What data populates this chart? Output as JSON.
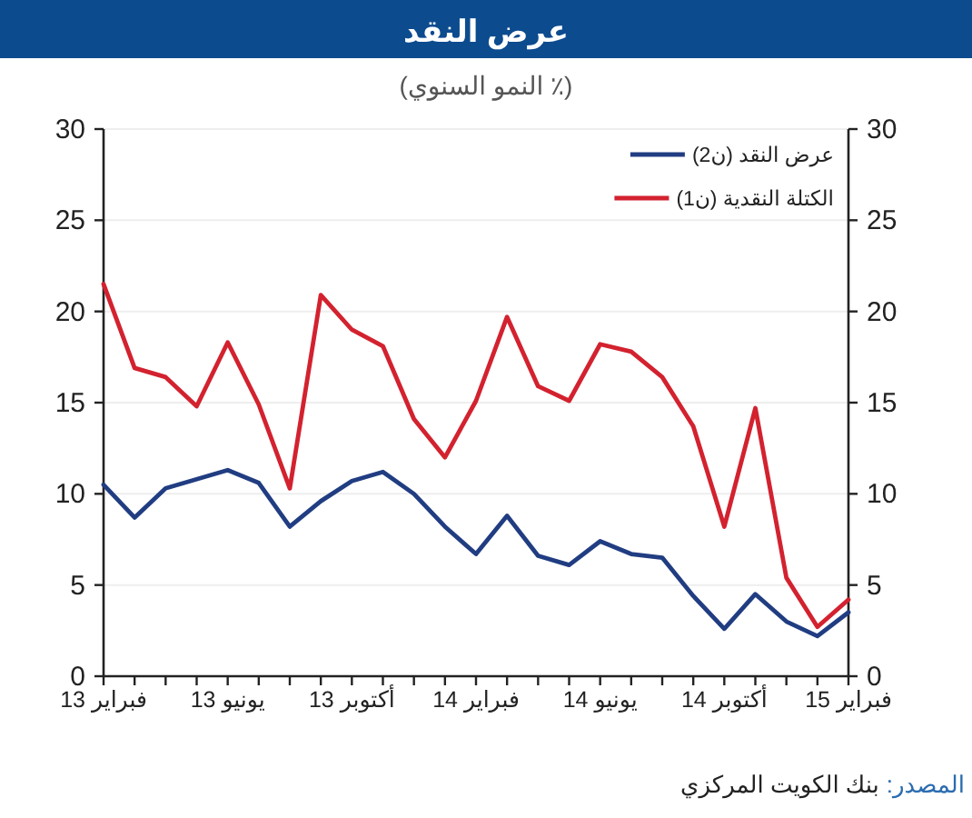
{
  "chart_data": {
    "type": "line",
    "title": "عرض النقد",
    "subtitle": "(٪ النمو السنوي)",
    "categories": [
      "فبراير 13",
      null,
      null,
      null,
      "يونيو 13",
      null,
      null,
      null,
      "أكتوبر 13",
      null,
      null,
      null,
      "فبراير 14",
      null,
      null,
      null,
      "يونيو 14",
      null,
      null,
      null,
      "أكتوبر 14",
      null,
      null,
      null,
      "فبراير 15"
    ],
    "series": [
      {
        "name": "عرض النقد (ن2)",
        "color": "#213d82",
        "values": [
          10.5,
          8.7,
          10.3,
          10.8,
          11.3,
          10.6,
          8.2,
          9.6,
          10.7,
          11.2,
          10.0,
          8.2,
          6.7,
          8.8,
          6.6,
          6.1,
          7.4,
          6.7,
          6.5,
          4.4,
          2.6,
          4.5,
          3.0,
          2.2,
          3.5
        ]
      },
      {
        "name": "الكتلة النقدية (ن1)",
        "color": "#d3222f",
        "values": [
          21.5,
          16.9,
          16.4,
          14.8,
          18.3,
          14.9,
          10.3,
          20.9,
          19.0,
          18.1,
          14.1,
          12.0,
          15.1,
          19.7,
          15.9,
          15.1,
          18.2,
          17.8,
          16.4,
          13.7,
          8.2,
          14.7,
          5.4,
          2.7,
          4.2
        ]
      }
    ],
    "ylim": [
      0,
      30
    ],
    "yticks": [
      0,
      5,
      10,
      15,
      20,
      25,
      30
    ],
    "y2lim": [
      0,
      30
    ],
    "y2ticks": [
      0,
      5,
      10,
      15,
      20,
      25,
      30
    ],
    "grid": "y",
    "legend": "top right",
    "annotations": [
      "المصدر:",
      "بنك الكويت المركزي"
    ]
  }
}
